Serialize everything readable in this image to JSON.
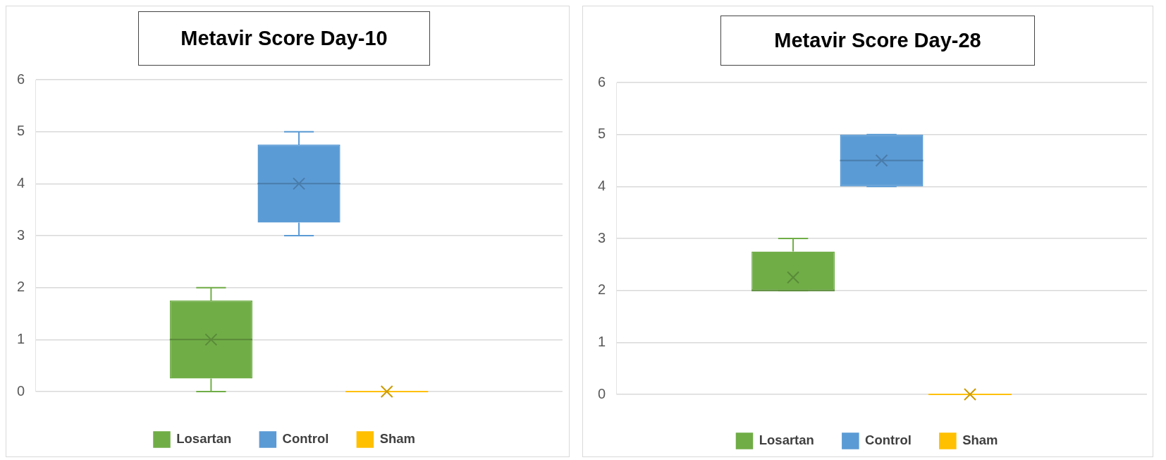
{
  "chart_data": [
    {
      "type": "box",
      "title": "Metavir Score Day-10",
      "categories": [
        null
      ],
      "series": [
        {
          "name": "Losartan",
          "color": "#70ad47",
          "boxes": [
            {
              "low": 0,
              "q1": 0.25,
              "median": 1,
              "q3": 1.75,
              "high": 2,
              "mean": 1
            }
          ]
        },
        {
          "name": "Control",
          "color": "#5b9bd5",
          "boxes": [
            {
              "low": 3,
              "q1": 3.25,
              "median": 4,
              "q3": 4.75,
              "high": 5,
              "mean": 4
            }
          ]
        },
        {
          "name": "Sham",
          "color": "#ffc000",
          "boxes": [
            {
              "low": 0,
              "q1": 0,
              "median": 0,
              "q3": 0,
              "high": 0,
              "mean": 0
            }
          ]
        }
      ],
      "ylim": [
        0,
        6
      ],
      "yticks": [
        0,
        1,
        2,
        3,
        4,
        5,
        6
      ],
      "grid": "y",
      "legend": "bottom",
      "marker": "cross",
      "tick_labels": "y"
    },
    {
      "type": "box",
      "title": "Metavir Score Day-28",
      "categories": [
        null
      ],
      "series": [
        {
          "name": "Losartan",
          "color": "#70ad47",
          "boxes": [
            {
              "low": 2,
              "q1": 2,
              "median": 2,
              "q3": 2.75,
              "high": 3,
              "mean": 2.25
            }
          ]
        },
        {
          "name": "Control",
          "color": "#5b9bd5",
          "boxes": [
            {
              "low": 4,
              "q1": 4,
              "median": 4.5,
              "q3": 5,
              "high": 5,
              "mean": 4.5
            }
          ]
        },
        {
          "name": "Sham",
          "color": "#ffc000",
          "boxes": [
            {
              "low": 0,
              "q1": 0,
              "median": 0,
              "q3": 0,
              "high": 0,
              "mean": 0
            }
          ]
        }
      ],
      "ylim": [
        0,
        6
      ],
      "yticks": [
        0,
        1,
        2,
        3,
        4,
        5,
        6
      ],
      "grid": "y",
      "legend": "bottom",
      "marker": "cross",
      "tick_labels": "y"
    }
  ]
}
